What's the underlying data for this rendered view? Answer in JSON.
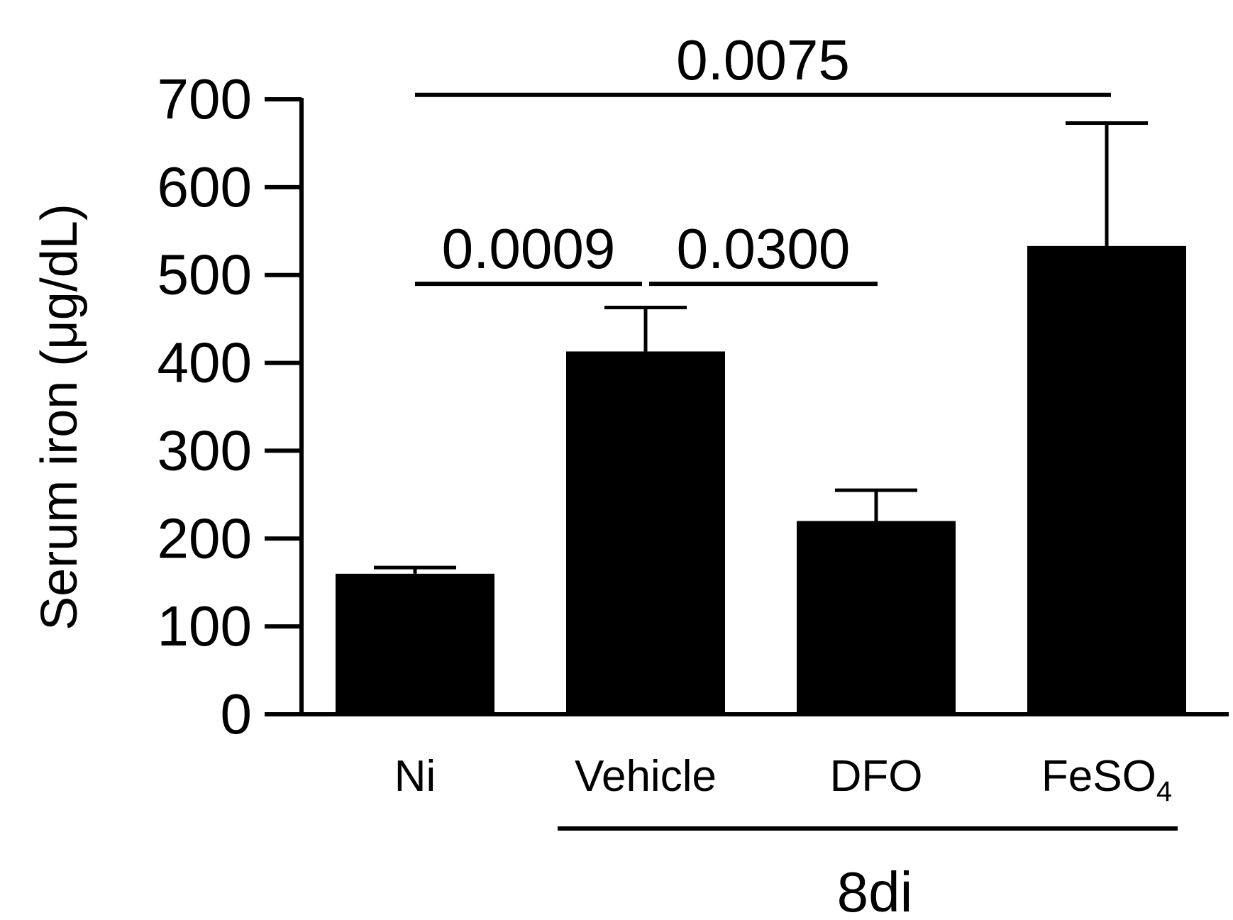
{
  "chart_data": {
    "type": "bar",
    "ylabel": "Serum iron (μg/dL)",
    "ylim": [
      0,
      700
    ],
    "yticks": [
      0,
      100,
      200,
      300,
      400,
      500,
      600,
      700
    ],
    "categories": [
      "Ni",
      "Vehicle",
      "DFO",
      "FeSO4"
    ],
    "category_labels": [
      {
        "main": "Ni",
        "sub": ""
      },
      {
        "main": "Vehicle",
        "sub": ""
      },
      {
        "main": "DFO",
        "sub": ""
      },
      {
        "main": "FeSO",
        "sub": "4"
      }
    ],
    "values": [
      160,
      413,
      220,
      533
    ],
    "errors": [
      7,
      50,
      35,
      140
    ],
    "bar_color": "#000000",
    "group": {
      "label": "8di",
      "from": 1,
      "to": 3
    },
    "comparisons": [
      {
        "from": 0,
        "to": 1,
        "label": "0.0009",
        "y": 490
      },
      {
        "from": 1,
        "to": 2,
        "label": "0.0300",
        "y": 490
      },
      {
        "from": 0,
        "to": 3,
        "label": "0.0075",
        "y": 705
      }
    ]
  }
}
